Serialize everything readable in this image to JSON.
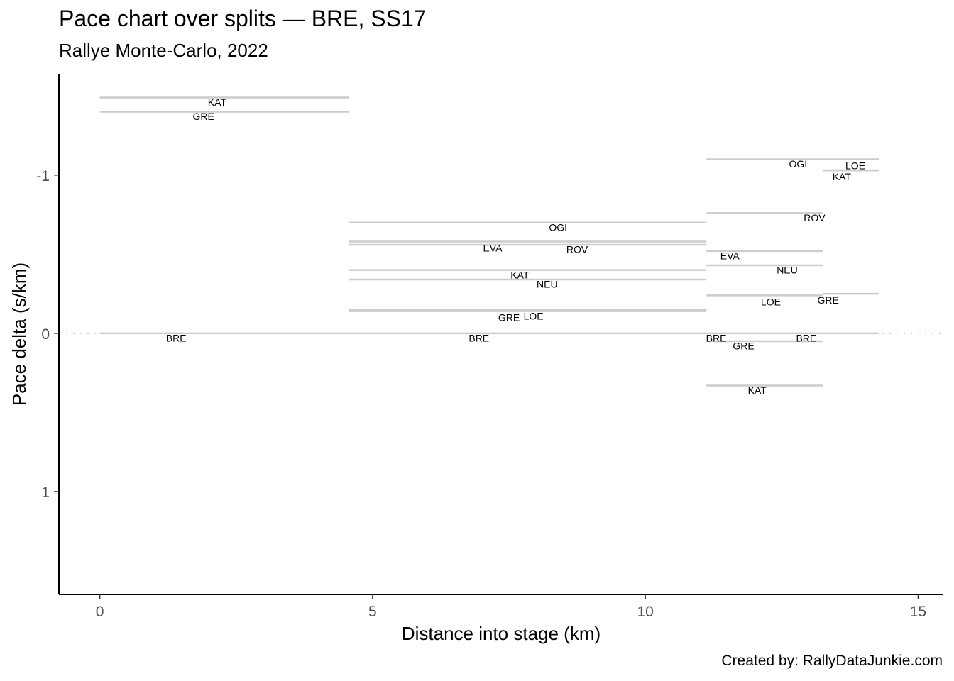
{
  "chart_data": {
    "type": "line",
    "title": "Pace chart over splits — BRE, SS17",
    "subtitle": "Rallye Monte-Carlo, 2022",
    "xlabel": "Distance into stage (km)",
    "ylabel": "Pace delta (s/km)",
    "caption": "Created by: RallyDataJunkie.com",
    "xlim": [
      -0.75,
      15.45
    ],
    "ylim": [
      1.65,
      -1.64
    ],
    "y_reversed": true,
    "x_ticks": [
      0,
      5,
      10,
      15
    ],
    "y_ticks": [
      -1,
      0,
      1
    ],
    "reference_line": {
      "y": 0,
      "style": "dotted"
    },
    "grid": false,
    "segments": [
      {
        "label": "BRE",
        "x_start": 0.0,
        "x_end": 4.56,
        "y": 0.0,
        "label_x": 1.4,
        "label_y": 0.03
      },
      {
        "label": "KAT",
        "x_start": 0.0,
        "x_end": 4.56,
        "y": -1.49,
        "label_x": 2.15,
        "label_y": -1.46
      },
      {
        "label": "GRE",
        "x_start": 0.0,
        "x_end": 4.56,
        "y": -1.4,
        "label_x": 1.9,
        "label_y": -1.37
      },
      {
        "label": "BRE",
        "x_start": 4.56,
        "x_end": 11.12,
        "y": 0.0,
        "label_x": 6.95,
        "label_y": 0.03
      },
      {
        "label": "OGI",
        "x_start": 4.56,
        "x_end": 11.12,
        "y": -0.7,
        "label_x": 8.4,
        "label_y": -0.67
      },
      {
        "label": "EVA",
        "x_start": 4.56,
        "x_end": 11.12,
        "y": -0.58,
        "label_x": 7.2,
        "label_y": -0.54
      },
      {
        "label": "ROV",
        "x_start": 4.56,
        "x_end": 11.12,
        "y": -0.56,
        "label_x": 8.75,
        "label_y": -0.53
      },
      {
        "label": "KAT",
        "x_start": 4.56,
        "x_end": 11.12,
        "y": -0.4,
        "label_x": 7.7,
        "label_y": -0.37
      },
      {
        "label": "NEU",
        "x_start": 4.56,
        "x_end": 11.12,
        "y": -0.34,
        "label_x": 8.2,
        "label_y": -0.31
      },
      {
        "label": "GRE",
        "x_start": 4.56,
        "x_end": 11.12,
        "y": -0.15,
        "label_x": 7.5,
        "label_y": -0.1
      },
      {
        "label": "LOE",
        "x_start": 4.56,
        "x_end": 11.12,
        "y": -0.14,
        "label_x": 7.95,
        "label_y": -0.11
      },
      {
        "label": "BRE",
        "x_start": 11.12,
        "x_end": 13.25,
        "y": 0.0,
        "label_x": 11.3,
        "label_y": 0.03
      },
      {
        "label": "OGI",
        "x_start": 11.12,
        "x_end": 14.28,
        "y": -1.1,
        "label_x": 12.8,
        "label_y": -1.07
      },
      {
        "label": "ROV",
        "x_start": 11.12,
        "x_end": 13.25,
        "y": -0.76,
        "label_x": 13.1,
        "label_y": -0.73
      },
      {
        "label": "EVA",
        "x_start": 11.12,
        "x_end": 13.25,
        "y": -0.52,
        "label_x": 11.55,
        "label_y": -0.49
      },
      {
        "label": "NEU",
        "x_start": 11.12,
        "x_end": 13.25,
        "y": -0.43,
        "label_x": 12.6,
        "label_y": -0.4
      },
      {
        "label": "LOE",
        "x_start": 11.12,
        "x_end": 13.25,
        "y": -0.24,
        "label_x": 12.3,
        "label_y": -0.2
      },
      {
        "label": "GRE",
        "x_start": 11.12,
        "x_end": 13.25,
        "y": 0.05,
        "label_x": 11.8,
        "label_y": 0.08
      },
      {
        "label": "KAT",
        "x_start": 11.12,
        "x_end": 13.25,
        "y": 0.33,
        "label_x": 12.05,
        "label_y": 0.36
      },
      {
        "label": "BRE",
        "x_start": 13.25,
        "x_end": 14.28,
        "y": 0.0,
        "label_x": 12.95,
        "label_y": 0.03
      },
      {
        "label": "LOE",
        "x_start": 13.25,
        "x_end": 14.28,
        "y": -1.03,
        "label_x": 13.85,
        "label_y": -1.06
      },
      {
        "label": "KAT",
        "x_start": 13.25,
        "x_end": 14.28,
        "y": -1.03,
        "label_x": 13.6,
        "label_y": -0.99
      },
      {
        "label": "GRE",
        "x_start": 13.25,
        "x_end": 14.28,
        "y": -0.25,
        "label_x": 13.35,
        "label_y": -0.21
      }
    ]
  },
  "colors": {
    "segment": "#cccccc",
    "reference": "#cccccc",
    "axis": "#000000",
    "tick_label": "#4d4d4d",
    "label": "#000000"
  }
}
